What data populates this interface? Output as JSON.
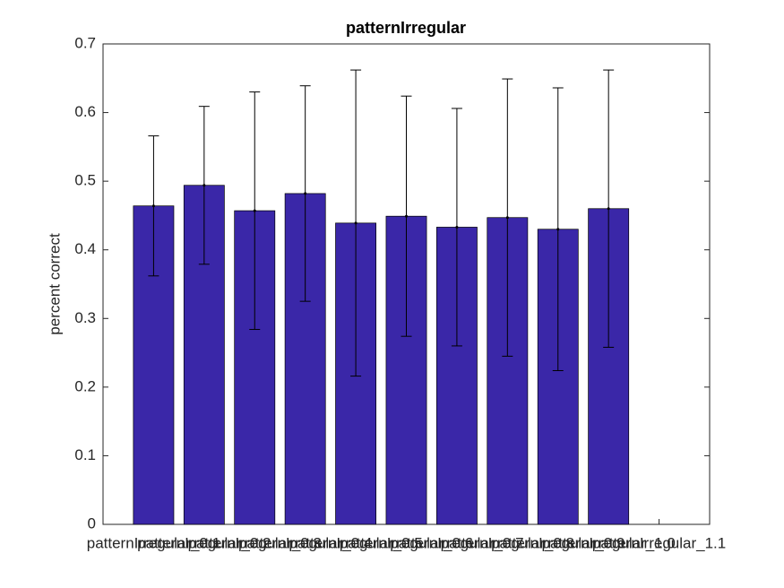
{
  "chart_data": {
    "type": "bar",
    "title": "patternIrregular",
    "ylabel": "percent correct",
    "categories": [
      "patternIrregular_0.1",
      "patternIrregular_0.2",
      "patternIrregular_0.3",
      "patternIrregular_0.4",
      "patternIrregular_0.5",
      "patternIrregular_0.6",
      "patternIrregular_0.7",
      "patternIrregular_0.8",
      "patternIrregular_0.9",
      "patternIrregular_1.0",
      "patternIrregular_1.1"
    ],
    "values": [
      0.464,
      0.494,
      0.457,
      0.482,
      0.439,
      0.449,
      0.433,
      0.447,
      0.43,
      0.46,
      null
    ],
    "errors": [
      0.102,
      0.115,
      0.173,
      0.157,
      0.223,
      0.175,
      0.173,
      0.202,
      0.206,
      0.202,
      null
    ],
    "color": "#3a27a8",
    "ylim": [
      0,
      0.7
    ],
    "yticks": [
      0,
      0.1,
      0.2,
      0.3,
      0.4,
      0.5,
      0.6,
      0.7
    ]
  }
}
